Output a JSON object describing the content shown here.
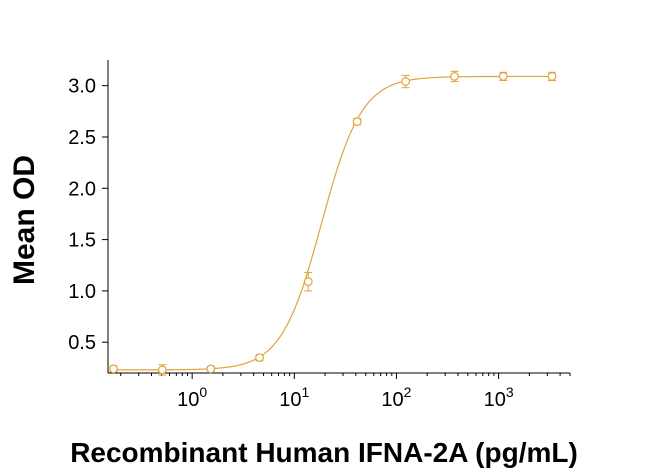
{
  "chart_data": {
    "type": "scatter",
    "xlabel": "Recombinant Human IFNA-2A (pg/mL)",
    "ylabel": "Mean OD",
    "x_scale": "log",
    "xlim": [
      0.15,
      5000
    ],
    "ylim": [
      0.2,
      3.25
    ],
    "x_ticks": [
      {
        "value": 1,
        "base": "10",
        "exp": "0"
      },
      {
        "value": 10,
        "base": "10",
        "exp": "1"
      },
      {
        "value": 100,
        "base": "10",
        "exp": "2"
      },
      {
        "value": 1000,
        "base": "10",
        "exp": "3"
      }
    ],
    "y_ticks": [
      {
        "value": 0.5,
        "label": "0.5"
      },
      {
        "value": 1.0,
        "label": "1.0"
      },
      {
        "value": 1.5,
        "label": "1.5"
      },
      {
        "value": 2.0,
        "label": "2.0"
      },
      {
        "value": 2.5,
        "label": "2.5"
      },
      {
        "value": 3.0,
        "label": "3.0"
      }
    ],
    "grid": false,
    "legend": "none",
    "color": "#e0a43a",
    "points": [
      {
        "x": 0.17,
        "y": 0.24,
        "err": 0.03
      },
      {
        "x": 0.51,
        "y": 0.23,
        "err": 0.05
      },
      {
        "x": 1.52,
        "y": 0.24,
        "err": 0.02
      },
      {
        "x": 4.57,
        "y": 0.35,
        "err": 0.03
      },
      {
        "x": 13.7,
        "y": 1.09,
        "err": 0.09
      },
      {
        "x": 41.2,
        "y": 2.65,
        "err": 0.03
      },
      {
        "x": 123,
        "y": 3.04,
        "err": 0.06
      },
      {
        "x": 370,
        "y": 3.09,
        "err": 0.05
      },
      {
        "x": 1111,
        "y": 3.09,
        "err": 0.04
      },
      {
        "x": 3333,
        "y": 3.09,
        "err": 0.04
      }
    ],
    "fit_curve": {
      "model": "4PL",
      "bottom": 0.23,
      "top": 3.09,
      "ec50": 18.5,
      "hill": 2.2
    }
  }
}
